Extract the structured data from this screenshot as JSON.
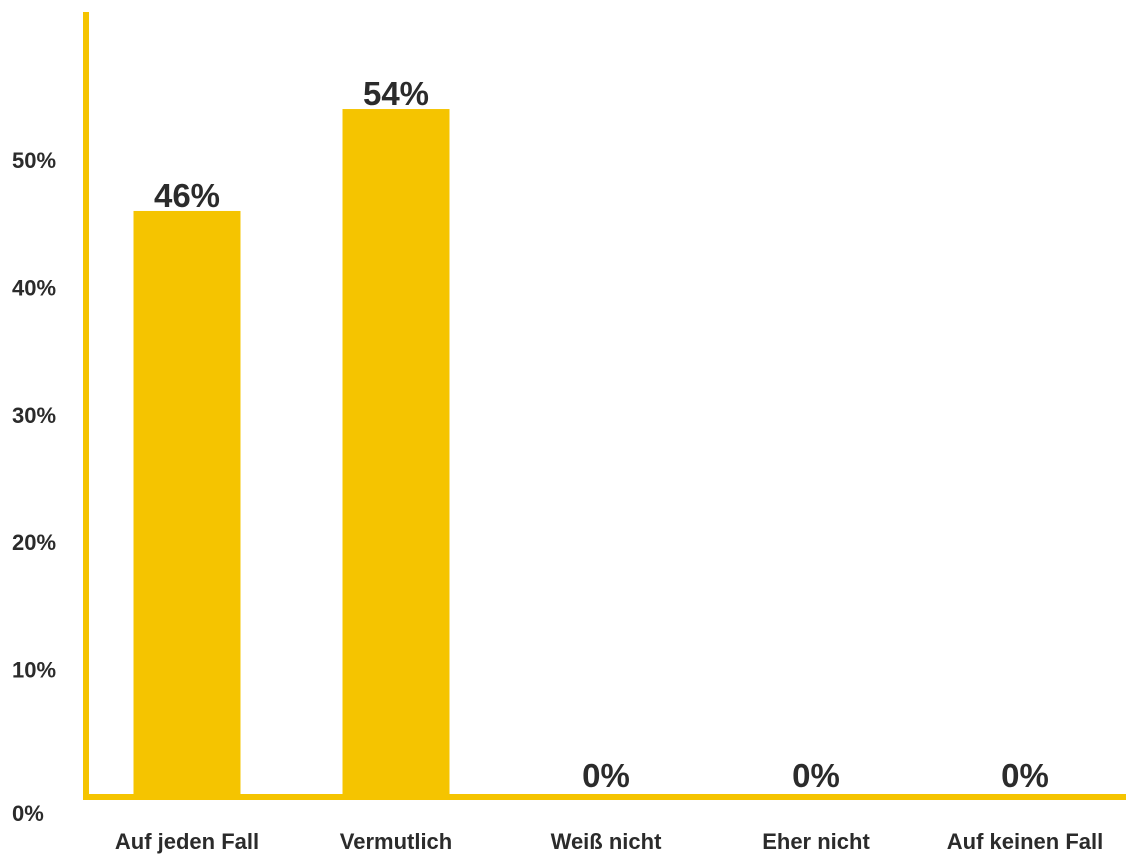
{
  "chart_data": {
    "type": "bar",
    "categories": [
      "Auf jeden Fall",
      "Vermutlich",
      "Weiß nicht",
      "Eher nicht",
      "Auf keinen Fall"
    ],
    "values": [
      46,
      54,
      0,
      0,
      0
    ],
    "value_labels": [
      "46%",
      "54%",
      "0%",
      "0%",
      "0%"
    ],
    "y_ticks": [
      0,
      10,
      20,
      30,
      40,
      50
    ],
    "y_tick_labels": [
      "0%",
      "10%",
      "20%",
      "30%",
      "40%",
      "50%"
    ],
    "ylim": [
      0,
      60
    ],
    "title": "",
    "xlabel": "",
    "ylabel": "",
    "grid": false,
    "legend": "none",
    "colors": {
      "bar": "#F5C400",
      "axis": "#F5C400",
      "text": "#2b2b2b"
    }
  }
}
